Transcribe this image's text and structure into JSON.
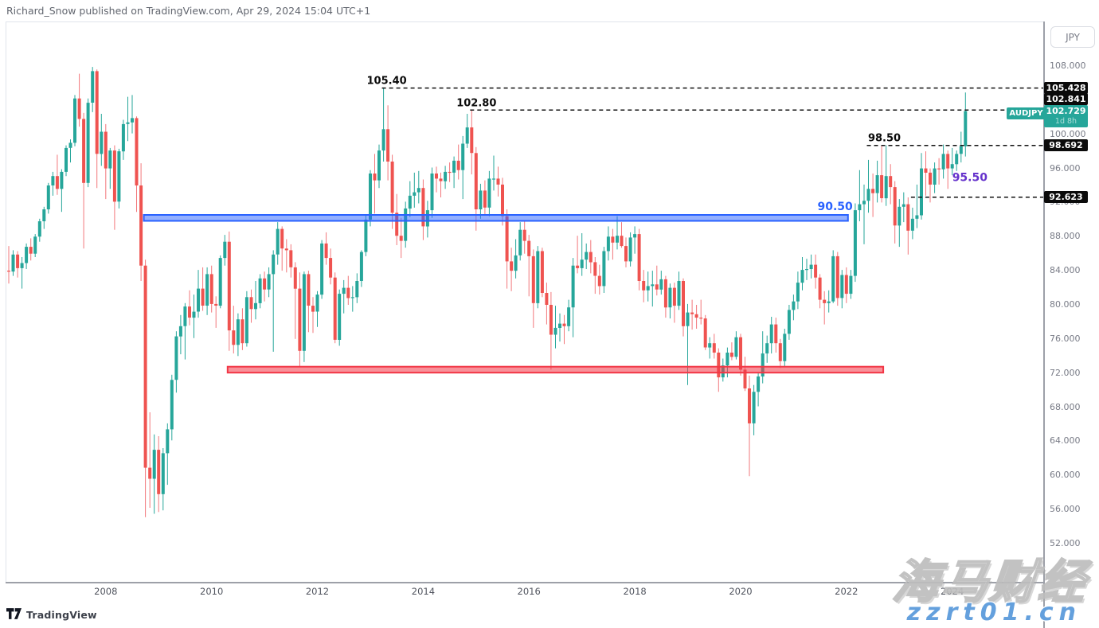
{
  "page": {
    "byline": "Richard_Snow published on TradingView.com, Apr 29, 2024 15:04 UTC+1",
    "footer_logo_text": "TradingView"
  },
  "price_axis": {
    "currency_label": "JPY",
    "ticks": [
      "108.000",
      "100.000",
      "96.000",
      "92.000",
      "88.000",
      "84.000",
      "80.000",
      "76.000",
      "72.000",
      "68.000",
      "64.000",
      "60.000",
      "56.000",
      "52.000"
    ],
    "current": {
      "price_label": "102.729",
      "countdown": "1d 8h"
    }
  },
  "time_axis": {
    "year_labels": [
      2008,
      2010,
      2012,
      2014,
      2016,
      2018,
      2020,
      2022,
      2024
    ]
  },
  "watermark": {
    "cn": "海马财经",
    "url": "zzrt01.cn"
  },
  "chart_data": {
    "type": "candlestick",
    "symbol": "AUDJPY",
    "timeframe": "monthly",
    "start_month": "2006-03",
    "end_month": "2024-04",
    "first_open": 84.0,
    "y_axis": {
      "min": 52,
      "max": 108,
      "tick_step": 4,
      "grid": false
    },
    "palette": {
      "up": "#26a69a",
      "down": "#ef5350",
      "down_wick": "#f2777b",
      "level_line": "#111111",
      "level_text": "#0b0b0b",
      "blue": "#2962ff",
      "blue_fill": "rgba(41,98,255,0.5)",
      "red": "#f23645",
      "red_fill": "rgba(242,54,69,0.55)",
      "purple": "#6633cc",
      "current": "#26a69a"
    },
    "levels": [
      {
        "price": 105.428,
        "axis_label": "105.428",
        "text": "105.40",
        "start_index": 85,
        "text_dx": 6
      },
      {
        "price": 102.841,
        "axis_label": "102.841",
        "text": "102.80",
        "start_index": 105,
        "text_dx": 8
      },
      {
        "price": 98.692,
        "axis_label": "98.692",
        "text": "98.50",
        "start_index": 195,
        "text_dx": 22
      },
      {
        "price": 92.623,
        "axis_label": "92.623",
        "text": null,
        "start_index": 205,
        "text_dx": 0
      }
    ],
    "bands": [
      {
        "top": 90.55,
        "bottom": 89.85,
        "start_index": 31,
        "end_index": 190,
        "color": "blue",
        "label": "90.50"
      },
      {
        "top": 72.75,
        "bottom": 72.05,
        "start_index": 50,
        "end_index": 198,
        "color": "red",
        "label": null
      }
    ],
    "annotations": [
      {
        "text": "95.50",
        "index": 214,
        "price": 94.5,
        "color": "purple"
      }
    ],
    "current_price": 102.729,
    "candles_hlc": [
      [
        86.9,
        82.5,
        83.9
      ],
      [
        86.4,
        83.4,
        85.9
      ],
      [
        86.3,
        83.2,
        84.3
      ],
      [
        85.6,
        81.9,
        84.9
      ],
      [
        87.2,
        84.2,
        86.8
      ],
      [
        87.8,
        85.2,
        86.0
      ],
      [
        88.3,
        85.6,
        88.0
      ],
      [
        90.1,
        87.4,
        89.8
      ],
      [
        91.5,
        88.9,
        91.2
      ],
      [
        94.3,
        90.7,
        94.0
      ],
      [
        95.6,
        92.8,
        95.1
      ],
      [
        97.6,
        92.9,
        93.6
      ],
      [
        95.9,
        90.9,
        95.6
      ],
      [
        98.7,
        95.1,
        98.4
      ],
      [
        99.4,
        96.7,
        99.0
      ],
      [
        104.6,
        98.6,
        104.2
      ],
      [
        107.1,
        100.9,
        101.8
      ],
      [
        102.5,
        86.6,
        94.3
      ],
      [
        104.2,
        93.8,
        103.7
      ],
      [
        107.9,
        102.6,
        107.4
      ],
      [
        107.6,
        93.7,
        97.7
      ],
      [
        102.4,
        96.3,
        100.3
      ],
      [
        101.2,
        92.4,
        96.0
      ],
      [
        98.4,
        93.6,
        98.1
      ],
      [
        98.7,
        88.8,
        92.1
      ],
      [
        98.3,
        91.3,
        98.0
      ],
      [
        101.7,
        97.0,
        101.2
      ],
      [
        104.4,
        99.2,
        101.4
      ],
      [
        104.6,
        100.1,
        101.9
      ],
      [
        102.1,
        90.9,
        94.0
      ],
      [
        96.6,
        82.8,
        84.6
      ],
      [
        85.3,
        55.1,
        60.9
      ],
      [
        67.4,
        56.2,
        59.6
      ],
      [
        64.8,
        55.5,
        63.0
      ],
      [
        64.6,
        55.7,
        57.8
      ],
      [
        63.2,
        55.9,
        62.6
      ],
      [
        66.1,
        58.9,
        65.4
      ],
      [
        71.8,
        64.1,
        71.2
      ],
      [
        76.9,
        69.7,
        76.3
      ],
      [
        78.8,
        74.2,
        77.5
      ],
      [
        80.2,
        73.6,
        79.8
      ],
      [
        81.7,
        77.6,
        78.5
      ],
      [
        81.2,
        76.1,
        79.2
      ],
      [
        84.1,
        78.5,
        81.9
      ],
      [
        84.4,
        79.3,
        79.9
      ],
      [
        84.4,
        78.8,
        83.6
      ],
      [
        84.6,
        79.1,
        80.1
      ],
      [
        81.0,
        77.3,
        79.9
      ],
      [
        85.8,
        79.6,
        85.5
      ],
      [
        88.2,
        84.6,
        87.4
      ],
      [
        88.6,
        74.6,
        77.0
      ],
      [
        79.9,
        74.3,
        75.3
      ],
      [
        79.0,
        74.0,
        78.3
      ],
      [
        79.6,
        74.7,
        75.5
      ],
      [
        81.6,
        75.1,
        80.9
      ],
      [
        81.8,
        77.9,
        79.5
      ],
      [
        82.8,
        78.3,
        80.2
      ],
      [
        83.6,
        79.6,
        83.1
      ],
      [
        83.9,
        80.4,
        81.8
      ],
      [
        84.4,
        80.9,
        83.6
      ],
      [
        86.4,
        74.5,
        85.9
      ],
      [
        89.7,
        84.7,
        88.9
      ],
      [
        89.2,
        84.0,
        86.6
      ],
      [
        87.7,
        83.8,
        86.4
      ],
      [
        87.1,
        83.2,
        84.4
      ],
      [
        85.0,
        76.0,
        81.9
      ],
      [
        83.8,
        72.8,
        74.6
      ],
      [
        83.9,
        73.3,
        83.6
      ],
      [
        84.0,
        76.8,
        79.9
      ],
      [
        80.9,
        76.7,
        79.2
      ],
      [
        81.6,
        77.4,
        81.2
      ],
      [
        87.6,
        80.7,
        87.2
      ],
      [
        88.5,
        84.7,
        85.5
      ],
      [
        86.6,
        82.4,
        83.2
      ],
      [
        83.8,
        75.5,
        75.9
      ],
      [
        81.8,
        75.2,
        81.3
      ],
      [
        82.9,
        79.0,
        82.0
      ],
      [
        83.4,
        80.0,
        80.8
      ],
      [
        82.2,
        79.2,
        80.9
      ],
      [
        83.7,
        80.2,
        82.8
      ],
      [
        86.4,
        82.1,
        86.2
      ],
      [
        90.5,
        85.7,
        90.0
      ],
      [
        95.8,
        89.2,
        95.4
      ],
      [
        97.7,
        90.7,
        94.6
      ],
      [
        98.8,
        93.7,
        98.1
      ],
      [
        105.4,
        96.8,
        100.6
      ],
      [
        103.4,
        94.6,
        96.8
      ],
      [
        97.6,
        88.9,
        90.8
      ],
      [
        93.0,
        87.0,
        88.1
      ],
      [
        90.2,
        85.5,
        87.5
      ],
      [
        92.1,
        86.7,
        91.3
      ],
      [
        94.5,
        90.3,
        92.8
      ],
      [
        95.5,
        91.4,
        93.2
      ],
      [
        95.7,
        91.9,
        93.7
      ],
      [
        94.7,
        87.6,
        89.2
      ],
      [
        92.2,
        87.9,
        91.1
      ],
      [
        96.1,
        90.2,
        95.4
      ],
      [
        96.2,
        93.2,
        94.8
      ],
      [
        95.5,
        92.6,
        94.5
      ],
      [
        96.3,
        93.6,
        95.6
      ],
      [
        96.7,
        94.4,
        95.5
      ],
      [
        97.4,
        93.7,
        96.9
      ],
      [
        98.8,
        94.7,
        95.8
      ],
      [
        99.8,
        92.4,
        98.9
      ],
      [
        102.4,
        98.4,
        100.8
      ],
      [
        102.8,
        95.3,
        97.8
      ],
      [
        98.5,
        88.7,
        91.2
      ],
      [
        94.2,
        90.1,
        93.4
      ],
      [
        94.6,
        90.5,
        91.4
      ],
      [
        95.7,
        90.4,
        94.8
      ],
      [
        97.5,
        93.4,
        94.8
      ],
      [
        96.2,
        92.7,
        94.1
      ],
      [
        94.9,
        89.3,
        90.4
      ],
      [
        91.2,
        81.9,
        85.1
      ],
      [
        86.7,
        81.6,
        84.0
      ],
      [
        87.7,
        83.1,
        85.8
      ],
      [
        89.7,
        85.2,
        88.8
      ],
      [
        89.8,
        86.0,
        87.5
      ],
      [
        88.2,
        81.0,
        85.7
      ],
      [
        86.5,
        77.3,
        80.2
      ],
      [
        86.9,
        79.6,
        86.3
      ],
      [
        86.7,
        80.9,
        81.4
      ],
      [
        82.6,
        77.7,
        80.0
      ],
      [
        81.5,
        72.4,
        76.5
      ],
      [
        79.9,
        74.9,
        77.3
      ],
      [
        79.0,
        75.7,
        77.8
      ],
      [
        78.8,
        75.4,
        77.5
      ],
      [
        80.6,
        76.9,
        79.7
      ],
      [
        85.5,
        76.2,
        84.6
      ],
      [
        88.1,
        83.7,
        84.3
      ],
      [
        88.4,
        83.4,
        85.3
      ],
      [
        87.2,
        84.2,
        86.2
      ],
      [
        87.6,
        83.7,
        85.0
      ],
      [
        85.6,
        81.3,
        83.4
      ],
      [
        84.7,
        81.2,
        82.2
      ],
      [
        86.8,
        81.4,
        86.3
      ],
      [
        89.2,
        85.2,
        88.0
      ],
      [
        88.9,
        85.3,
        87.3
      ],
      [
        90.4,
        86.5,
        88.1
      ],
      [
        89.7,
        86.7,
        86.9
      ],
      [
        87.9,
        84.4,
        85.1
      ],
      [
        88.5,
        84.5,
        87.9
      ],
      [
        89.2,
        86.0,
        88.3
      ],
      [
        88.9,
        81.7,
        82.8
      ],
      [
        84.1,
        80.3,
        81.7
      ],
      [
        83.9,
        80.4,
        82.2
      ],
      [
        84.0,
        79.8,
        82.4
      ],
      [
        84.6,
        81.1,
        81.8
      ],
      [
        84.0,
        81.2,
        83.0
      ],
      [
        83.4,
        78.5,
        79.7
      ],
      [
        82.5,
        78.4,
        82.0
      ],
      [
        82.6,
        77.9,
        79.9
      ],
      [
        83.9,
        79.4,
        82.8
      ],
      [
        83.1,
        76.3,
        77.5
      ],
      [
        80.1,
        70.6,
        79.1
      ],
      [
        80.6,
        77.1,
        78.9
      ],
      [
        80.0,
        77.2,
        78.5
      ],
      [
        80.6,
        77.7,
        78.4
      ],
      [
        78.8,
        74.7,
        75.0
      ],
      [
        76.2,
        73.7,
        75.5
      ],
      [
        76.6,
        73.7,
        74.4
      ],
      [
        74.9,
        69.8,
        71.5
      ],
      [
        73.7,
        71.0,
        72.9
      ],
      [
        75.0,
        71.5,
        74.4
      ],
      [
        75.6,
        73.5,
        73.9
      ],
      [
        76.9,
        73.6,
        76.2
      ],
      [
        76.6,
        71.7,
        72.4
      ],
      [
        73.9,
        69.9,
        70.2
      ],
      [
        71.7,
        59.9,
        66.1
      ],
      [
        70.6,
        64.7,
        69.8
      ],
      [
        72.1,
        68.1,
        71.6
      ],
      [
        76.9,
        70.8,
        74.3
      ],
      [
        76.4,
        73.2,
        75.5
      ],
      [
        78.6,
        74.3,
        77.7
      ],
      [
        78.5,
        74.4,
        75.5
      ],
      [
        76.0,
        72.6,
        73.4
      ],
      [
        77.2,
        72.7,
        76.6
      ],
      [
        80.0,
        75.9,
        79.4
      ],
      [
        81.2,
        78.2,
        80.4
      ],
      [
        83.9,
        79.5,
        82.6
      ],
      [
        85.6,
        81.7,
        84.1
      ],
      [
        85.4,
        82.9,
        84.2
      ],
      [
        85.9,
        83.1,
        84.7
      ],
      [
        85.9,
        81.9,
        83.2
      ],
      [
        83.6,
        79.6,
        80.6
      ],
      [
        81.6,
        77.7,
        80.2
      ],
      [
        81.7,
        79.1,
        80.4
      ],
      [
        86.4,
        80.2,
        85.7
      ],
      [
        86.2,
        79.9,
        80.8
      ],
      [
        84.1,
        79.6,
        83.5
      ],
      [
        84.4,
        80.2,
        81.3
      ],
      [
        84.1,
        80.7,
        83.4
      ],
      [
        91.9,
        82.7,
        91.1
      ],
      [
        95.8,
        89.8,
        91.8
      ],
      [
        94.1,
        87.1,
        92.2
      ],
      [
        97.0,
        90.8,
        93.6
      ],
      [
        95.4,
        90.3,
        93.1
      ],
      [
        96.9,
        92.0,
        95.2
      ],
      [
        98.7,
        92.0,
        92.5
      ],
      [
        98.7,
        91.6,
        95.1
      ],
      [
        96.5,
        91.8,
        93.8
      ],
      [
        94.5,
        87.2,
        89.3
      ],
      [
        92.4,
        86.8,
        91.5
      ],
      [
        93.2,
        89.7,
        91.8
      ],
      [
        92.6,
        85.9,
        88.7
      ],
      [
        91.4,
        87.7,
        90.1
      ],
      [
        94.1,
        89.0,
        90.5
      ],
      [
        97.8,
        90.0,
        96.0
      ],
      [
        98.0,
        92.8,
        95.5
      ],
      [
        96.0,
        92.0,
        94.1
      ],
      [
        96.7,
        93.1,
        96.0
      ],
      [
        97.2,
        94.1,
        95.9
      ],
      [
        98.8,
        94.8,
        97.7
      ],
      [
        98.1,
        93.6,
        96.0
      ],
      [
        98.4,
        95.2,
        96.5
      ],
      [
        98.1,
        95.7,
        97.7
      ],
      [
        100.3,
        96.7,
        98.6
      ],
      [
        104.9,
        97.4,
        102.73
      ]
    ]
  }
}
